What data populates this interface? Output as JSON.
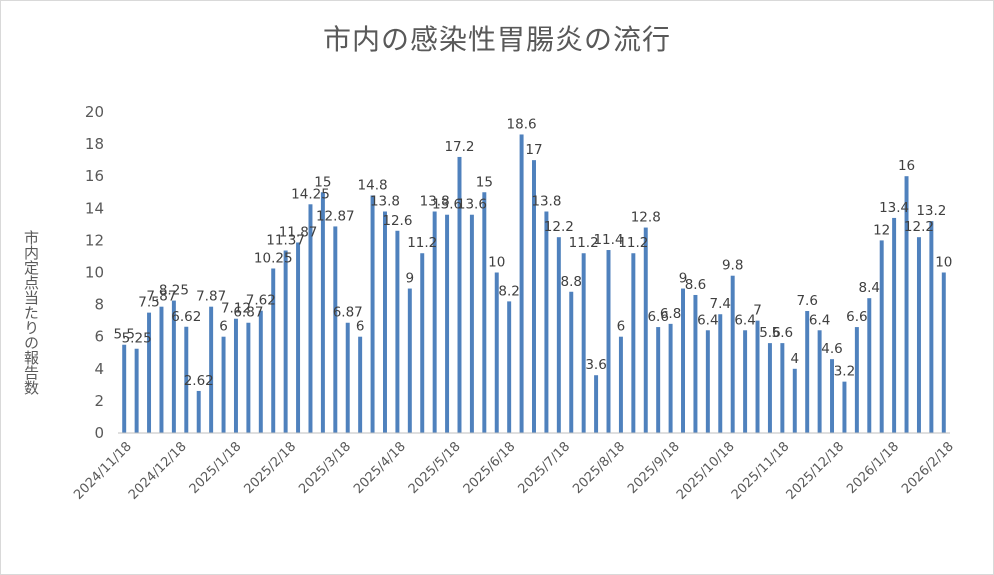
{
  "chart_data": {
    "type": "bar",
    "title": "市内の感染性胃腸炎の流行",
    "ylabel": "市内定点当たりの報告数",
    "xlabel": "",
    "ylim": [
      0,
      20
    ],
    "ytick_step": 2,
    "grid": false,
    "legend": "none",
    "bar_color": "#4F81BD",
    "x_tick_labels": [
      "2024/11/18",
      "2024/12/18",
      "2025/1/18",
      "2025/2/18",
      "2025/3/18",
      "2025/4/18",
      "2025/5/18",
      "2025/6/18",
      "2025/7/18",
      "2025/8/18",
      "2025/9/18",
      "2025/10/18",
      "2025/11/18",
      "2025/12/18",
      "2026/1/18",
      "2026/2/18"
    ],
    "categories": [
      "2024/11/18",
      "2024/11/25",
      "2024/12/2",
      "2024/12/9",
      "2024/12/16",
      "2024/12/23",
      "2024/12/30",
      "2025/1/6",
      "2025/1/13",
      "2025/1/20",
      "2025/1/27",
      "2025/2/3",
      "2025/2/10",
      "2025/2/17",
      "2025/2/24",
      "2025/3/3",
      "2025/3/10",
      "2025/3/17",
      "2025/3/24",
      "2025/3/31",
      "2025/4/7",
      "2025/4/14",
      "2025/4/21",
      "2025/4/28",
      "2025/5/5",
      "2025/5/12",
      "2025/5/19",
      "2025/5/26",
      "2025/6/2",
      "2025/6/9",
      "2025/6/16",
      "2025/6/23",
      "2025/6/30",
      "2025/7/7",
      "2025/7/14",
      "2025/7/21",
      "2025/7/28",
      "2025/8/4",
      "2025/8/11",
      "2025/8/18",
      "2025/8/25",
      "2025/9/1",
      "2025/9/8",
      "2025/9/15",
      "2025/9/22",
      "2025/9/29",
      "2025/10/6",
      "2025/10/13",
      "2025/10/20",
      "2025/10/27",
      "2025/11/3",
      "2025/11/10",
      "2025/11/17",
      "2025/11/24",
      "2025/12/1",
      "2025/12/8",
      "2025/12/15",
      "2025/12/22",
      "2025/12/29",
      "2026/1/5",
      "2026/1/12",
      "2026/1/19",
      "2026/1/26",
      "2026/2/2",
      "2026/2/9",
      "2026/2/16",
      "2026/2/23"
    ],
    "values": [
      5.5,
      5.25,
      7.5,
      7.87,
      8.25,
      6.62,
      2.62,
      7.87,
      6,
      7.12,
      6.87,
      7.62,
      10.25,
      11.37,
      11.87,
      14.25,
      15,
      12.87,
      6.87,
      6,
      14.8,
      13.8,
      12.6,
      9,
      11.2,
      13.8,
      13.6,
      17.2,
      13.6,
      15,
      10,
      8.2,
      18.6,
      17,
      13.8,
      12.2,
      8.8,
      11.2,
      3.6,
      11.4,
      6,
      11.2,
      12.8,
      6.6,
      6.8,
      9,
      8.6,
      6.4,
      7.4,
      9.8,
      6.4,
      7,
      5.6,
      5.6,
      4,
      7.6,
      6.4,
      4.6,
      3.2,
      6.6,
      8.4,
      12,
      13.4,
      16,
      12.2,
      13.2,
      10
    ]
  }
}
